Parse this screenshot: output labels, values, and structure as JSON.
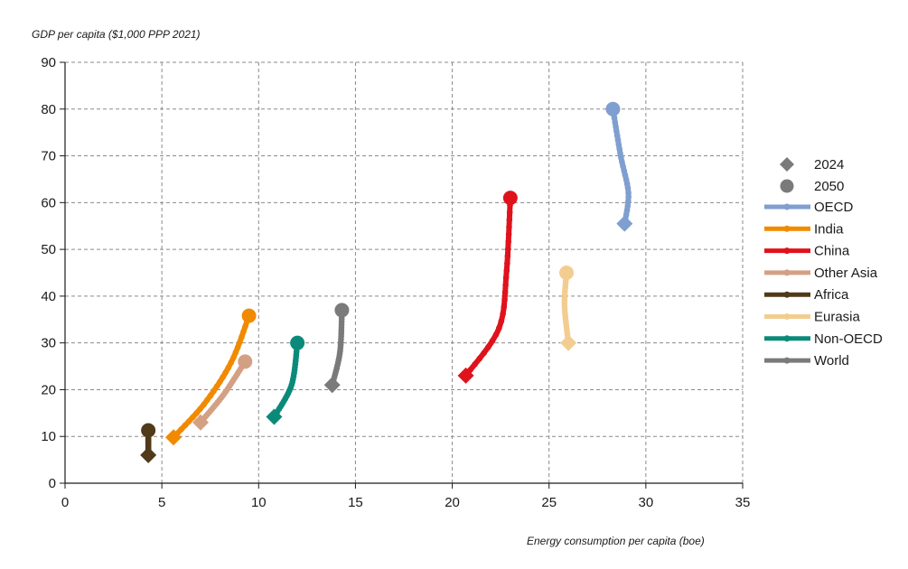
{
  "chart_data": {
    "type": "line",
    "ylabel": "GDP per capita ($1,000 PPP 2021)",
    "xlabel": "Energy consumption per capita (boe)",
    "xlim": [
      0,
      35
    ],
    "ylim": [
      0,
      90
    ],
    "xticks": [
      0,
      5,
      10,
      15,
      20,
      25,
      30,
      35
    ],
    "yticks": [
      0,
      10,
      20,
      30,
      40,
      50,
      60,
      70,
      80,
      90
    ],
    "grid": true,
    "legend_position": "right",
    "marker_legend": [
      {
        "name": "2024",
        "marker": "diamond"
      },
      {
        "name": "2050",
        "marker": "circle"
      }
    ],
    "series": [
      {
        "name": "OECD",
        "color": "#7f9fd0",
        "x": [
          28.9,
          29.1,
          28.7,
          28.3
        ],
        "y": [
          55.5,
          62,
          70,
          80
        ]
      },
      {
        "name": "India",
        "color": "#f18a00",
        "x": [
          5.6,
          7.2,
          8.6,
          9.5
        ],
        "y": [
          9.8,
          17,
          26,
          35.8
        ]
      },
      {
        "name": "China",
        "color": "#e0121b",
        "x": [
          20.7,
          22.4,
          22.8,
          23.0
        ],
        "y": [
          23,
          33,
          45,
          61
        ]
      },
      {
        "name": "Other Asia",
        "color": "#d4a084",
        "x": [
          7.0,
          8.2,
          9.3
        ],
        "y": [
          13,
          19,
          26
        ]
      },
      {
        "name": "Africa",
        "color": "#503a1a",
        "x": [
          4.3,
          4.3
        ],
        "y": [
          6,
          11.3
        ]
      },
      {
        "name": "Eurasia",
        "color": "#f3cd90",
        "x": [
          26.0,
          25.8,
          25.9
        ],
        "y": [
          30,
          38,
          45
        ]
      },
      {
        "name": "Non-OECD",
        "color": "#0b8a7a",
        "x": [
          10.8,
          11.7,
          12.0
        ],
        "y": [
          14.2,
          21,
          30
        ]
      },
      {
        "name": "World",
        "color": "#7a7a7a",
        "x": [
          13.8,
          14.2,
          14.3
        ],
        "y": [
          21,
          28,
          37
        ]
      }
    ]
  }
}
